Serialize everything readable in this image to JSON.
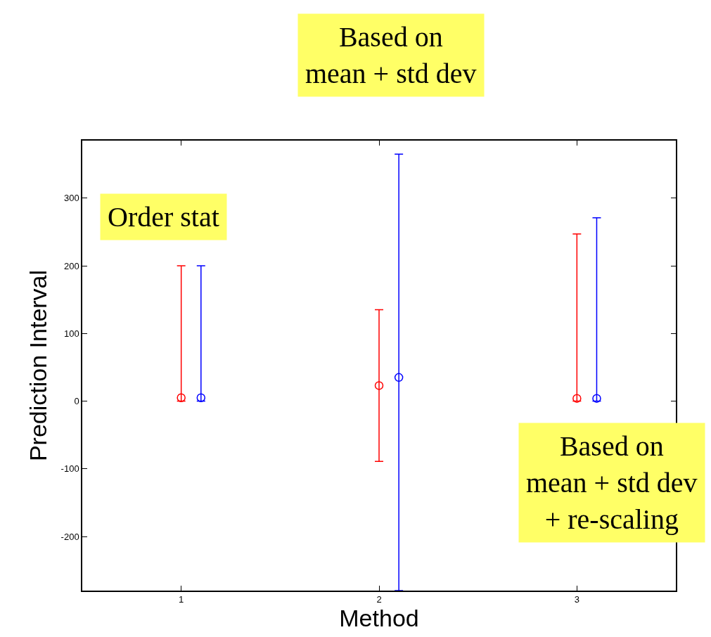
{
  "chart_data": {
    "type": "scatter",
    "xlabel": "Method",
    "ylabel": "Prediction Interval",
    "xlim": [
      0.5,
      3.5
    ],
    "xticks": [
      1,
      2,
      3
    ],
    "ylim": [
      -280,
      385
    ],
    "yticks": [
      -200,
      -100,
      0,
      100,
      200,
      300
    ],
    "marker": "circle",
    "series": [
      {
        "color": "#ff0000",
        "x": [
          1,
          2,
          3
        ],
        "values": [
          5,
          23,
          4
        ],
        "errors": [
          [
            0,
            200
          ],
          [
            -89,
            135
          ],
          [
            0,
            247
          ]
        ]
      },
      {
        "color": "#0000ff",
        "x": [
          1.1,
          2.1,
          3.1
        ],
        "values": [
          5,
          35,
          4
        ],
        "errors": [
          [
            0,
            200
          ],
          [
            -280,
            365
          ],
          [
            0,
            271
          ]
        ]
      }
    ],
    "annotations": [
      "Based on\nmean + std dev",
      "Order stat",
      "Based on\nmean + std dev\n+ re-scaling"
    ]
  }
}
